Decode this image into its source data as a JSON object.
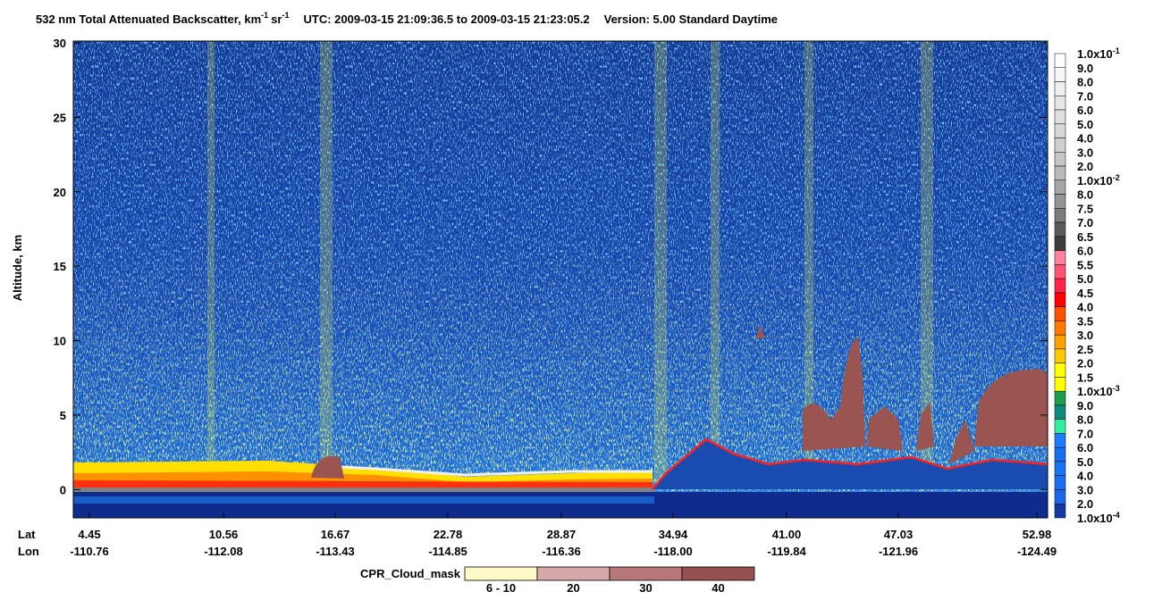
{
  "chart_data": {
    "type": "curtain",
    "title": {
      "text": "532 nm Total Attenuated Backscatter, km",
      "exp1": "-1",
      "unit2": "sr",
      "exp2": "-1",
      "time": "UTC:  2009-03-15 21:09:36.5  to  2009-03-15 21:23:05.2",
      "version": "Version: 5.00  Standard  Daytime"
    },
    "y_label": "Altitude, km",
    "ylim": [
      -1.9,
      30
    ],
    "yticks": [
      0,
      5,
      10,
      15,
      20,
      25,
      30
    ],
    "x_row_labels": [
      "Lat",
      "Lon"
    ],
    "lat": [
      "4.45",
      "10.56",
      "16.67",
      "22.78",
      "28.87",
      "34.94",
      "41.00",
      "47.03",
      "52.98"
    ],
    "lon": [
      "-110.76",
      "-112.08",
      "-113.43",
      "-114.85",
      "-116.36",
      "-118.00",
      "-119.84",
      "-121.96",
      "-124.49"
    ],
    "colorbar_labels": [
      {
        "base": "1.0x10",
        "exp": "-1"
      },
      {
        "base": "9.0"
      },
      {
        "base": "8.0"
      },
      {
        "base": "7.0"
      },
      {
        "base": "6.0"
      },
      {
        "base": "5.0"
      },
      {
        "base": "4.0"
      },
      {
        "base": "3.0"
      },
      {
        "base": "2.0"
      },
      {
        "base": "1.0x10",
        "exp": "-2"
      },
      {
        "base": "8.0"
      },
      {
        "base": "7.5"
      },
      {
        "base": "7.0"
      },
      {
        "base": "6.5"
      },
      {
        "base": "6.0"
      },
      {
        "base": "5.5"
      },
      {
        "base": "5.0"
      },
      {
        "base": "4.5"
      },
      {
        "base": "4.0"
      },
      {
        "base": "3.5"
      },
      {
        "base": "3.0"
      },
      {
        "base": "2.5"
      },
      {
        "base": "2.0"
      },
      {
        "base": "1.5"
      },
      {
        "base": "1.0x10",
        "exp": "-3"
      },
      {
        "base": "9.0"
      },
      {
        "base": "8.0"
      },
      {
        "base": "7.0"
      },
      {
        "base": "6.0"
      },
      {
        "base": "5.0"
      },
      {
        "base": "4.0"
      },
      {
        "base": "3.0"
      },
      {
        "base": "2.0"
      },
      {
        "base": "1.0x10",
        "exp": "-4"
      }
    ],
    "colorbar_colors": [
      "#ffffff",
      "#f7f7f7",
      "#efefef",
      "#e7e7e7",
      "#dfdfdf",
      "#d7d7d7",
      "#cfcfcf",
      "#c6c6c6",
      "#bababa",
      "#a6a6a6",
      "#949494",
      "#7b7b7b",
      "#5a5a5a",
      "#3c3c3c",
      "#ff80a0",
      "#ff5275",
      "#ff2545",
      "#ff0000",
      "#ff5000",
      "#ff7a00",
      "#ffa200",
      "#ffc800",
      "#ffff00",
      "#ffff00",
      "#1e9e4a",
      "#128a7a",
      "#2ef0a0",
      "#1e7aff",
      "#1a6ef0",
      "#1a74f5",
      "#1a70f0",
      "#1a68e8",
      "#123aa0",
      "#0d2a8c"
    ],
    "cloud_mask": {
      "title": "CPR_Cloud_mask",
      "labels": [
        "6 - 10",
        "20",
        "30",
        "40"
      ],
      "colors": [
        "#fffac8",
        "#d6a8a8",
        "#b87878",
        "#955050"
      ]
    }
  }
}
